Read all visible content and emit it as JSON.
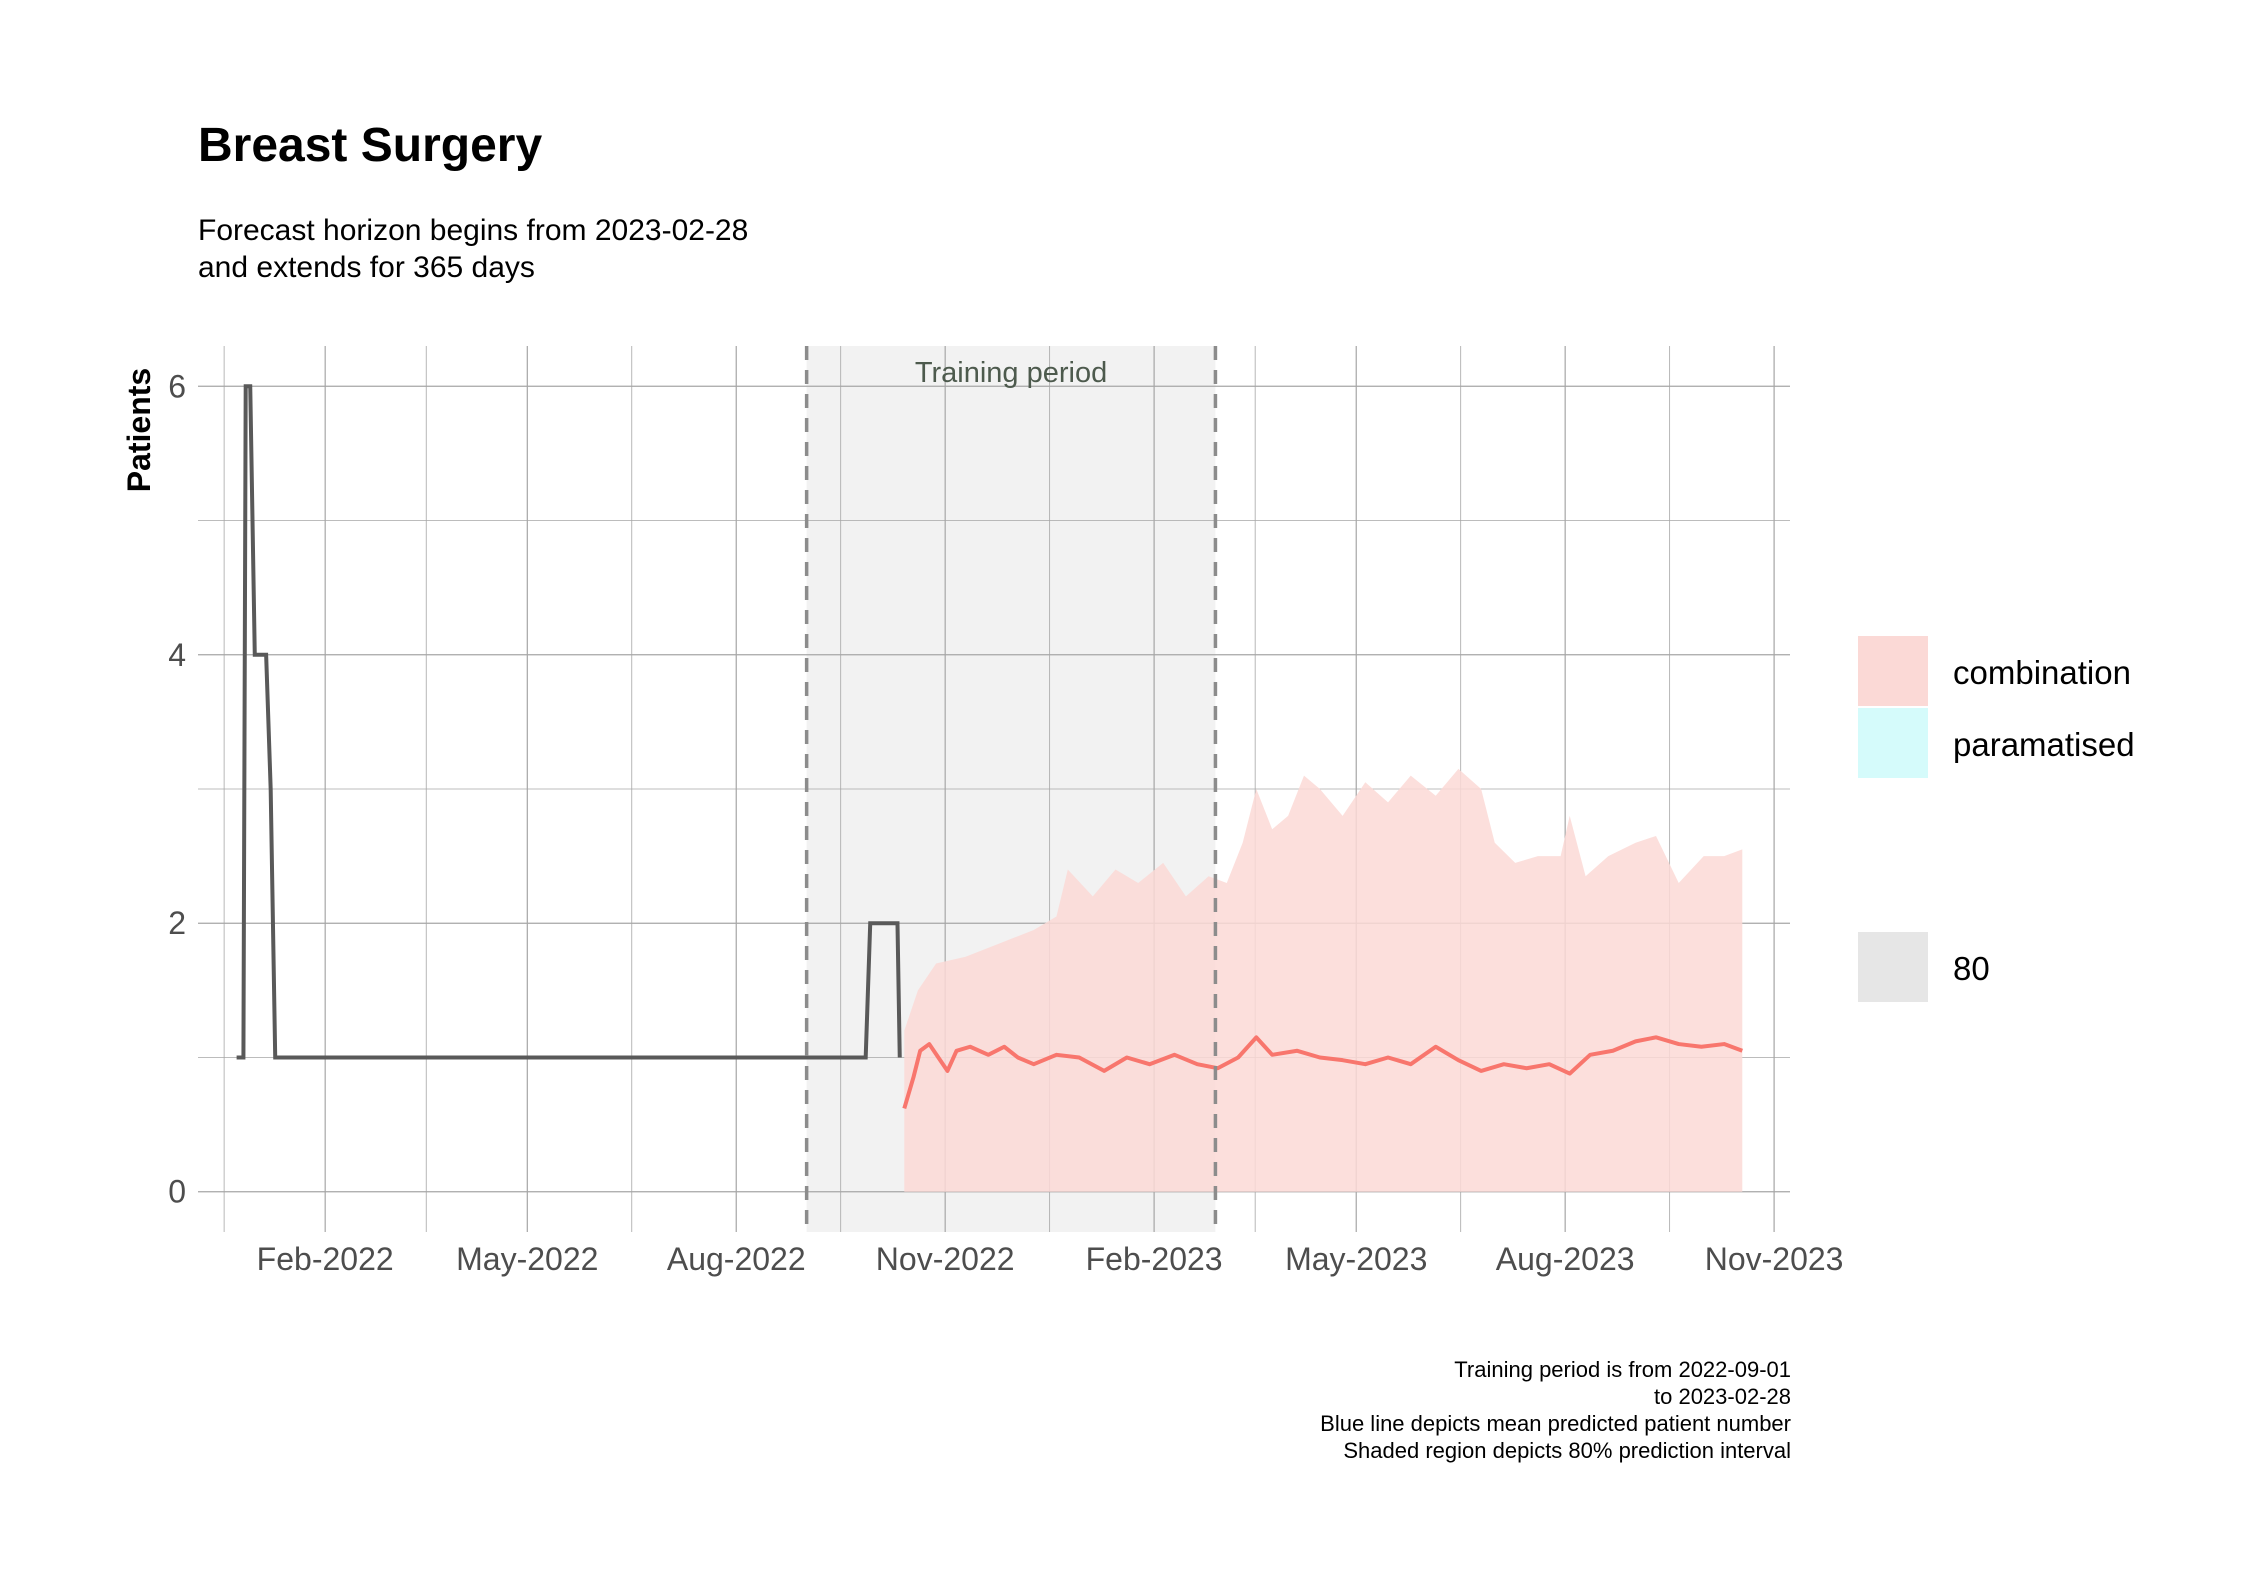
{
  "title": "Breast Surgery",
  "subtitle_line1": "Forecast horizon begins from 2023-02-28",
  "subtitle_line2": "and extends for 365 days",
  "caption": [
    "Training period is from 2022-09-01",
    "to 2023-02-28",
    "Blue line depicts mean predicted patient number",
    "Shaded region depicts 80% prediction interval"
  ],
  "legend": {
    "items": [
      {
        "label": "combination",
        "color": "#fbd9d6"
      },
      {
        "label": "paramatised",
        "color": "#d5fbfb"
      },
      {
        "label": "80",
        "color": "#e6e6e6"
      }
    ]
  },
  "chart_data": {
    "type": "line",
    "xlabel": "",
    "ylabel": "Patients",
    "xlim": [
      "2021-12-07",
      "2023-11-08"
    ],
    "ylim": [
      -0.3,
      6.3
    ],
    "x_ticks": [
      "2022-02-01",
      "2022-05-01",
      "2022-08-01",
      "2022-11-01",
      "2023-02-01",
      "2023-05-01",
      "2023-08-01",
      "2023-11-01"
    ],
    "x_tick_labels": [
      "Feb-2022",
      "May-2022",
      "Aug-2022",
      "Nov-2022",
      "Feb-2023",
      "May-2023",
      "Aug-2023",
      "Nov-2023"
    ],
    "y_ticks": [
      0,
      2,
      4,
      6
    ],
    "grid": true,
    "legend_position": "right",
    "colors": {
      "observed": "#595959",
      "forecast": "#f8766d",
      "band": "#fbd9d6",
      "training_shade": "#f2f2f2",
      "vline": "#8c8c8c",
      "grid": "#a6a6a6"
    },
    "training_period": {
      "start": "2022-09-01",
      "end": "2023-02-28",
      "label": "Training period"
    },
    "observed": [
      [
        "2021-12-24",
        1
      ],
      [
        "2021-12-27",
        1
      ],
      [
        "2021-12-28",
        6
      ],
      [
        "2021-12-30",
        6
      ],
      [
        "2022-01-01",
        4
      ],
      [
        "2022-01-06",
        4
      ],
      [
        "2022-01-08",
        3
      ],
      [
        "2022-01-10",
        1
      ],
      [
        "2022-09-27",
        1
      ],
      [
        "2022-09-29",
        2
      ],
      [
        "2022-10-11",
        2
      ],
      [
        "2022-10-12",
        1
      ]
    ],
    "forecast_mean": [
      [
        "2022-10-14",
        0.62
      ],
      [
        "2022-10-18",
        0.85
      ],
      [
        "2022-10-21",
        1.05
      ],
      [
        "2022-10-25",
        1.1
      ],
      [
        "2022-10-29",
        1.0
      ],
      [
        "2022-11-02",
        0.9
      ],
      [
        "2022-11-06",
        1.05
      ],
      [
        "2022-11-12",
        1.08
      ],
      [
        "2022-11-20",
        1.02
      ],
      [
        "2022-11-27",
        1.08
      ],
      [
        "2022-12-03",
        1.0
      ],
      [
        "2022-12-10",
        0.95
      ],
      [
        "2022-12-20",
        1.02
      ],
      [
        "2022-12-30",
        1.0
      ],
      [
        "2023-01-10",
        0.9
      ],
      [
        "2023-01-20",
        1.0
      ],
      [
        "2023-01-30",
        0.95
      ],
      [
        "2023-02-10",
        1.02
      ],
      [
        "2023-02-20",
        0.95
      ],
      [
        "2023-03-01",
        0.92
      ],
      [
        "2023-03-10",
        1.0
      ],
      [
        "2023-03-18",
        1.15
      ],
      [
        "2023-03-25",
        1.02
      ],
      [
        "2023-04-05",
        1.05
      ],
      [
        "2023-04-15",
        1.0
      ],
      [
        "2023-04-25",
        0.98
      ],
      [
        "2023-05-05",
        0.95
      ],
      [
        "2023-05-15",
        1.0
      ],
      [
        "2023-05-25",
        0.95
      ],
      [
        "2023-06-05",
        1.08
      ],
      [
        "2023-06-15",
        0.98
      ],
      [
        "2023-06-25",
        0.9
      ],
      [
        "2023-07-05",
        0.95
      ],
      [
        "2023-07-15",
        0.92
      ],
      [
        "2023-07-25",
        0.95
      ],
      [
        "2023-08-03",
        0.88
      ],
      [
        "2023-08-12",
        1.02
      ],
      [
        "2023-08-22",
        1.05
      ],
      [
        "2023-09-01",
        1.12
      ],
      [
        "2023-09-10",
        1.15
      ],
      [
        "2023-09-20",
        1.1
      ],
      [
        "2023-09-30",
        1.08
      ],
      [
        "2023-10-10",
        1.1
      ],
      [
        "2023-10-18",
        1.05
      ]
    ],
    "band_upper": [
      [
        "2022-10-14",
        1.2
      ],
      [
        "2022-10-20",
        1.5
      ],
      [
        "2022-10-28",
        1.7
      ],
      [
        "2022-11-10",
        1.75
      ],
      [
        "2022-11-25",
        1.85
      ],
      [
        "2022-12-10",
        1.95
      ],
      [
        "2022-12-20",
        2.05
      ],
      [
        "2022-12-25",
        2.4
      ],
      [
        "2023-01-05",
        2.2
      ],
      [
        "2023-01-15",
        2.4
      ],
      [
        "2023-01-25",
        2.3
      ],
      [
        "2023-02-05",
        2.45
      ],
      [
        "2023-02-15",
        2.2
      ],
      [
        "2023-02-25",
        2.35
      ],
      [
        "2023-03-05",
        2.3
      ],
      [
        "2023-03-12",
        2.6
      ],
      [
        "2023-03-18",
        3.0
      ],
      [
        "2023-03-25",
        2.7
      ],
      [
        "2023-04-01",
        2.8
      ],
      [
        "2023-04-08",
        3.1
      ],
      [
        "2023-04-15",
        3.0
      ],
      [
        "2023-04-25",
        2.8
      ],
      [
        "2023-05-05",
        3.05
      ],
      [
        "2023-05-15",
        2.9
      ],
      [
        "2023-05-25",
        3.1
      ],
      [
        "2023-06-05",
        2.95
      ],
      [
        "2023-06-15",
        3.15
      ],
      [
        "2023-06-25",
        3.0
      ],
      [
        "2023-07-01",
        2.6
      ],
      [
        "2023-07-10",
        2.45
      ],
      [
        "2023-07-20",
        2.5
      ],
      [
        "2023-07-30",
        2.5
      ],
      [
        "2023-08-03",
        2.8
      ],
      [
        "2023-08-10",
        2.35
      ],
      [
        "2023-08-20",
        2.5
      ],
      [
        "2023-09-01",
        2.6
      ],
      [
        "2023-09-10",
        2.65
      ],
      [
        "2023-09-20",
        2.3
      ],
      [
        "2023-10-01",
        2.5
      ],
      [
        "2023-10-10",
        2.5
      ],
      [
        "2023-10-18",
        2.55
      ]
    ],
    "band_lower": [
      [
        "2022-10-14",
        0
      ],
      [
        "2023-10-18",
        0
      ]
    ]
  }
}
